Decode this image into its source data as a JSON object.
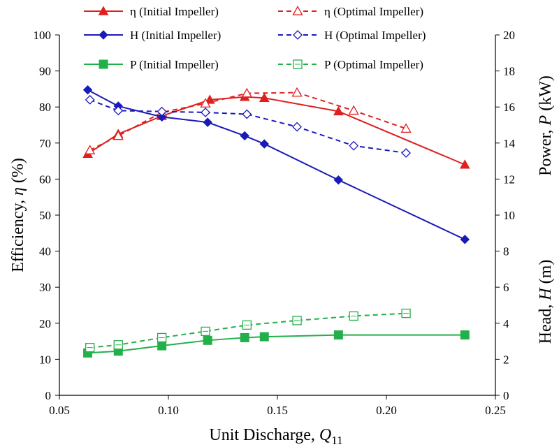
{
  "chart_data": {
    "type": "line",
    "xlabel_text": "Unit Discharge, ",
    "xlabel_symbol": "Q",
    "xlabel_subscript": "11",
    "ylabel_left_text": "Efficiency, ",
    "ylabel_left_symbol": "η",
    "ylabel_left_unit": " (%)",
    "ylabel_right_power_text": "Power, ",
    "ylabel_right_power_symbol": "P",
    "ylabel_right_power_unit": " (kW)",
    "ylabel_right_head_text": "Head, ",
    "ylabel_right_head_symbol": "H",
    "ylabel_right_head_unit": " (m)",
    "xlim": [
      0.05,
      0.25
    ],
    "ylim_left": [
      0,
      100
    ],
    "ylim_right": [
      0,
      20
    ],
    "x_ticks": [
      "0.05",
      "0.10",
      "0.15",
      "0.20",
      "0.25"
    ],
    "y_left_ticks": [
      "0",
      "10",
      "20",
      "30",
      "40",
      "50",
      "60",
      "70",
      "80",
      "90",
      "100"
    ],
    "y_right_ticks": [
      "0",
      "2",
      "4",
      "6",
      "8",
      "10",
      "12",
      "14",
      "16",
      "18",
      "20"
    ],
    "series": [
      {
        "name": "η (Initial Impeller)",
        "axis": "left",
        "color": "#e02020",
        "dash": false,
        "marker": "triangle",
        "filled": true,
        "x": [
          0.063,
          0.077,
          0.097,
          0.119,
          0.135,
          0.144,
          0.178,
          0.236
        ],
        "y": [
          67,
          72.5,
          77.5,
          82,
          82.8,
          82.5,
          78.8,
          64
        ]
      },
      {
        "name": "η (Optimal Impeller)",
        "axis": "left",
        "color": "#e02020",
        "dash": true,
        "marker": "triangle",
        "filled": false,
        "x": [
          0.064,
          0.077,
          0.097,
          0.117,
          0.136,
          0.159,
          0.185,
          0.209
        ],
        "y": [
          68,
          72,
          78.5,
          81,
          83.8,
          84,
          79,
          74
        ]
      },
      {
        "name": "H (Initial Impeller)",
        "axis": "right",
        "color": "#1a1ab8",
        "dash": false,
        "marker": "diamond",
        "filled": true,
        "x": [
          0.063,
          0.077,
          0.097,
          0.118,
          0.135,
          0.144,
          0.178,
          0.236
        ],
        "y": [
          16.95,
          16.05,
          15.45,
          15.15,
          14.4,
          13.95,
          11.95,
          8.65
        ]
      },
      {
        "name": "H (Optimal Impeller)",
        "axis": "right",
        "color": "#1a1ab8",
        "dash": true,
        "marker": "diamond",
        "filled": false,
        "x": [
          0.064,
          0.077,
          0.097,
          0.117,
          0.136,
          0.159,
          0.185,
          0.209
        ],
        "y": [
          16.4,
          15.8,
          15.75,
          15.7,
          15.6,
          14.9,
          13.85,
          13.45
        ]
      },
      {
        "name": "P (Initial Impeller)",
        "axis": "right",
        "color": "#22b04a",
        "dash": false,
        "marker": "square",
        "filled": true,
        "x": [
          0.063,
          0.077,
          0.097,
          0.118,
          0.135,
          0.144,
          0.178,
          0.236
        ],
        "y": [
          2.35,
          2.45,
          2.75,
          3.05,
          3.2,
          3.25,
          3.35,
          3.35
        ]
      },
      {
        "name": "P (Optimal Impeller)",
        "axis": "right",
        "color": "#22b04a",
        "dash": true,
        "marker": "square",
        "filled": false,
        "x": [
          0.064,
          0.077,
          0.097,
          0.117,
          0.136,
          0.159,
          0.185,
          0.209
        ],
        "y": [
          2.65,
          2.8,
          3.2,
          3.55,
          3.9,
          4.15,
          4.4,
          4.55
        ]
      }
    ],
    "legend_position": "top"
  }
}
